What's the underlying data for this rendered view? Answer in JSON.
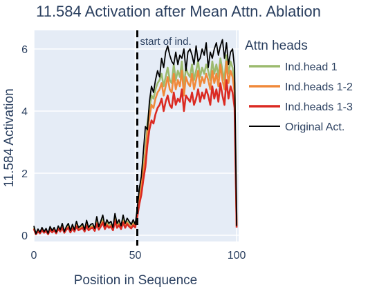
{
  "chart_data": {
    "type": "line",
    "title": "11.584 Activation after Mean Attn. Ablation",
    "xlabel": "Position in Sequence",
    "ylabel": "11.584 Activation",
    "xlim": [
      0,
      101
    ],
    "ylim": [
      -0.2,
      6.6
    ],
    "xticks": [
      0,
      50,
      100
    ],
    "yticks": [
      0,
      2,
      4,
      6
    ],
    "grid": true,
    "legend_title": "Attn heads",
    "legend_placement": "right",
    "annotation": {
      "text": "start of ind.",
      "x": 51
    },
    "x": [
      0,
      1,
      2,
      3,
      4,
      5,
      6,
      7,
      8,
      9,
      10,
      11,
      12,
      13,
      14,
      15,
      16,
      17,
      18,
      19,
      20,
      21,
      22,
      23,
      24,
      25,
      26,
      27,
      28,
      29,
      30,
      31,
      32,
      33,
      34,
      35,
      36,
      37,
      38,
      39,
      40,
      41,
      42,
      43,
      44,
      45,
      46,
      47,
      48,
      49,
      50,
      51,
      52,
      53,
      54,
      55,
      56,
      57,
      58,
      59,
      60,
      61,
      62,
      63,
      64,
      65,
      66,
      67,
      68,
      69,
      70,
      71,
      72,
      73,
      74,
      75,
      76,
      77,
      78,
      79,
      80,
      81,
      82,
      83,
      84,
      85,
      86,
      87,
      88,
      89,
      90,
      91,
      92,
      93,
      94,
      95,
      96,
      97,
      98,
      99,
      100
    ],
    "series": [
      {
        "name": "Ind.head 1",
        "color": "#9cba6e",
        "values": [
          0.25,
          0.05,
          0.15,
          0.08,
          0.2,
          0.1,
          0.18,
          0.05,
          0.22,
          0.12,
          0.2,
          0.08,
          0.25,
          0.15,
          0.3,
          0.1,
          0.22,
          0.3,
          0.12,
          0.28,
          0.15,
          0.35,
          0.2,
          0.25,
          0.3,
          0.15,
          0.38,
          0.2,
          0.28,
          0.3,
          0.18,
          0.45,
          0.22,
          0.35,
          0.5,
          0.25,
          0.4,
          0.3,
          0.35,
          0.2,
          0.55,
          0.3,
          0.4,
          0.25,
          0.5,
          0.3,
          0.45,
          0.35,
          0.28,
          0.4,
          0.3,
          0.75,
          1.3,
          1.6,
          2.3,
          2.7,
          3.6,
          4.1,
          4.5,
          4.4,
          4.7,
          4.9,
          5.0,
          5.2,
          4.8,
          5.1,
          5.4,
          5.0,
          4.9,
          5.5,
          5.0,
          5.3,
          5.1,
          5.6,
          4.8,
          5.4,
          5.2,
          5.1,
          5.5,
          5.0,
          5.3,
          5.6,
          5.1,
          5.4,
          5.2,
          5.5,
          5.3,
          5.0,
          5.6,
          5.2,
          5.5,
          5.1,
          5.7,
          5.3,
          5.0,
          5.8,
          5.2,
          5.6,
          5.4,
          4.9,
          0.3
        ]
      },
      {
        "name": "Ind.heads 1-2",
        "color": "#f0893a",
        "values": [
          0.22,
          0.04,
          0.13,
          0.07,
          0.18,
          0.09,
          0.16,
          0.04,
          0.2,
          0.1,
          0.18,
          0.07,
          0.22,
          0.13,
          0.27,
          0.09,
          0.2,
          0.27,
          0.1,
          0.25,
          0.13,
          0.32,
          0.18,
          0.22,
          0.27,
          0.13,
          0.35,
          0.18,
          0.25,
          0.27,
          0.16,
          0.4,
          0.2,
          0.32,
          0.45,
          0.22,
          0.36,
          0.27,
          0.32,
          0.18,
          0.5,
          0.27,
          0.36,
          0.22,
          0.45,
          0.27,
          0.4,
          0.32,
          0.25,
          0.36,
          0.28,
          0.68,
          1.2,
          1.5,
          2.1,
          2.5,
          3.3,
          3.8,
          4.2,
          4.1,
          4.4,
          4.6,
          4.7,
          4.9,
          4.5,
          4.8,
          5.1,
          4.7,
          4.6,
          5.2,
          4.7,
          5.0,
          4.8,
          5.3,
          4.5,
          5.1,
          4.9,
          4.8,
          5.2,
          4.7,
          5.0,
          5.3,
          4.8,
          5.1,
          4.9,
          5.2,
          5.0,
          4.7,
          5.3,
          4.9,
          5.2,
          4.8,
          5.5,
          5.0,
          4.7,
          5.6,
          4.9,
          5.3,
          5.1,
          4.6,
          0.28
        ]
      },
      {
        "name": "Ind.heads 1-3",
        "color": "#db2a22",
        "values": [
          0.2,
          0.03,
          0.12,
          0.06,
          0.16,
          0.08,
          0.14,
          0.03,
          0.18,
          0.09,
          0.16,
          0.06,
          0.2,
          0.12,
          0.24,
          0.08,
          0.18,
          0.24,
          0.09,
          0.22,
          0.12,
          0.28,
          0.16,
          0.2,
          0.24,
          0.12,
          0.3,
          0.16,
          0.22,
          0.24,
          0.14,
          0.36,
          0.18,
          0.28,
          0.4,
          0.2,
          0.32,
          0.24,
          0.28,
          0.16,
          0.45,
          0.24,
          0.32,
          0.2,
          0.4,
          0.24,
          0.36,
          0.28,
          0.22,
          0.32,
          0.25,
          0.6,
          1.0,
          1.3,
          1.8,
          2.2,
          2.9,
          3.4,
          3.7,
          3.6,
          3.9,
          4.1,
          4.2,
          4.4,
          4.0,
          4.3,
          4.5,
          4.2,
          4.1,
          4.6,
          4.2,
          4.4,
          4.3,
          4.7,
          4.0,
          4.5,
          4.4,
          4.3,
          4.6,
          4.2,
          4.4,
          4.7,
          4.3,
          4.6,
          4.4,
          4.7,
          4.5,
          4.2,
          4.8,
          4.4,
          4.7,
          4.3,
          4.9,
          4.5,
          4.2,
          5.0,
          4.4,
          4.8,
          4.6,
          4.1,
          0.25
        ]
      },
      {
        "name": "Original Act.",
        "color": "#000000",
        "values": [
          0.3,
          0.05,
          0.2,
          0.1,
          0.25,
          0.12,
          0.22,
          0.06,
          0.28,
          0.15,
          0.25,
          0.1,
          0.3,
          0.18,
          0.38,
          0.12,
          0.28,
          0.38,
          0.15,
          0.35,
          0.18,
          0.45,
          0.25,
          0.3,
          0.38,
          0.18,
          0.48,
          0.25,
          0.35,
          0.38,
          0.22,
          0.6,
          0.28,
          0.45,
          0.65,
          0.3,
          0.5,
          0.38,
          0.45,
          0.25,
          0.7,
          0.38,
          0.5,
          0.3,
          0.65,
          0.38,
          0.55,
          0.45,
          0.35,
          0.5,
          0.35,
          0.9,
          1.5,
          1.9,
          2.7,
          3.5,
          3.4,
          4.3,
          4.8,
          4.6,
          5.0,
          5.3,
          5.1,
          5.7,
          5.4,
          5.9,
          6.1,
          5.8,
          5.6,
          5.5,
          5.9,
          5.5,
          5.8,
          5.7,
          6.0,
          5.3,
          5.9,
          6.0,
          5.8,
          5.5,
          6.1,
          5.6,
          5.7,
          6.0,
          5.8,
          6.2,
          5.4,
          5.9,
          5.7,
          6.0,
          6.2,
          5.8,
          6.1,
          6.3,
          5.7,
          6.2,
          5.5,
          5.9,
          6.0,
          5.4,
          0.3
        ]
      }
    ]
  }
}
